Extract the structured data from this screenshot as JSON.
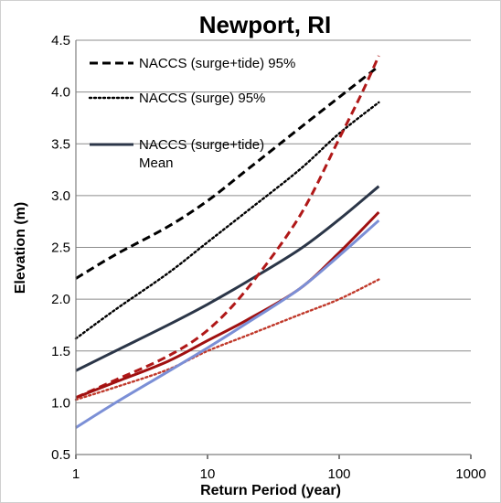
{
  "chart_data": {
    "type": "line",
    "title": "Newport, RI",
    "xlabel": "Return Period (year)",
    "ylabel": "Elevation (m)",
    "x_scale": "log",
    "xlim": [
      1,
      1000
    ],
    "ylim": [
      0.5,
      4.5
    ],
    "x_ticks": [
      "1",
      "10",
      "100",
      "1000"
    ],
    "y_ticks": [
      "0.5",
      "1.0",
      "1.5",
      "2.0",
      "2.5",
      "3.0",
      "3.5",
      "4.0",
      "4.5"
    ],
    "grid": "horizontal",
    "legend_position": "top-left",
    "series": [
      {
        "name": "NACCS (surge+tide) 95%",
        "color": "#000000",
        "style": "dashed",
        "x": [
          1,
          2,
          5,
          10,
          20,
          50,
          100,
          200
        ],
        "y": [
          2.2,
          2.43,
          2.7,
          2.95,
          3.25,
          3.65,
          3.95,
          4.25
        ]
      },
      {
        "name": "NACCS (surge) 95%",
        "color": "#000000",
        "style": "dotted",
        "x": [
          1,
          2,
          5,
          10,
          20,
          50,
          100,
          200
        ],
        "y": [
          1.62,
          1.9,
          2.25,
          2.55,
          2.85,
          3.25,
          3.6,
          3.9
        ]
      },
      {
        "name": "NACCS (surge+tide) Mean",
        "name_lines": [
          "NACCS (surge+tide)",
          "Mean"
        ],
        "color": "#2b3648",
        "style": "solid",
        "x": [
          1,
          2,
          5,
          10,
          20,
          50,
          100,
          200
        ],
        "y": [
          1.31,
          1.5,
          1.75,
          1.95,
          2.17,
          2.48,
          2.77,
          3.09
        ]
      },
      {
        "color": "#b01818",
        "style": "dashed",
        "x": [
          1,
          2,
          5,
          10,
          20,
          50,
          100,
          150,
          200
        ],
        "y": [
          1.05,
          1.22,
          1.45,
          1.7,
          2.1,
          2.8,
          3.55,
          4.0,
          4.35
        ]
      },
      {
        "color": "#a01010",
        "style": "solid",
        "x": [
          1,
          2,
          5,
          10,
          20,
          50,
          100,
          200
        ],
        "y": [
          1.05,
          1.2,
          1.4,
          1.6,
          1.8,
          2.1,
          2.45,
          2.84
        ]
      },
      {
        "color": "#c0392b",
        "style": "dotted",
        "x": [
          1,
          2,
          5,
          10,
          20,
          50,
          100,
          200
        ],
        "y": [
          1.03,
          1.15,
          1.32,
          1.5,
          1.65,
          1.85,
          2.0,
          2.19
        ]
      },
      {
        "color": "#7b8fd6",
        "style": "solid",
        "x": [
          1,
          2,
          5,
          10,
          20,
          50,
          100,
          200
        ],
        "y": [
          0.76,
          1.0,
          1.3,
          1.53,
          1.77,
          2.1,
          2.42,
          2.76
        ]
      }
    ]
  }
}
